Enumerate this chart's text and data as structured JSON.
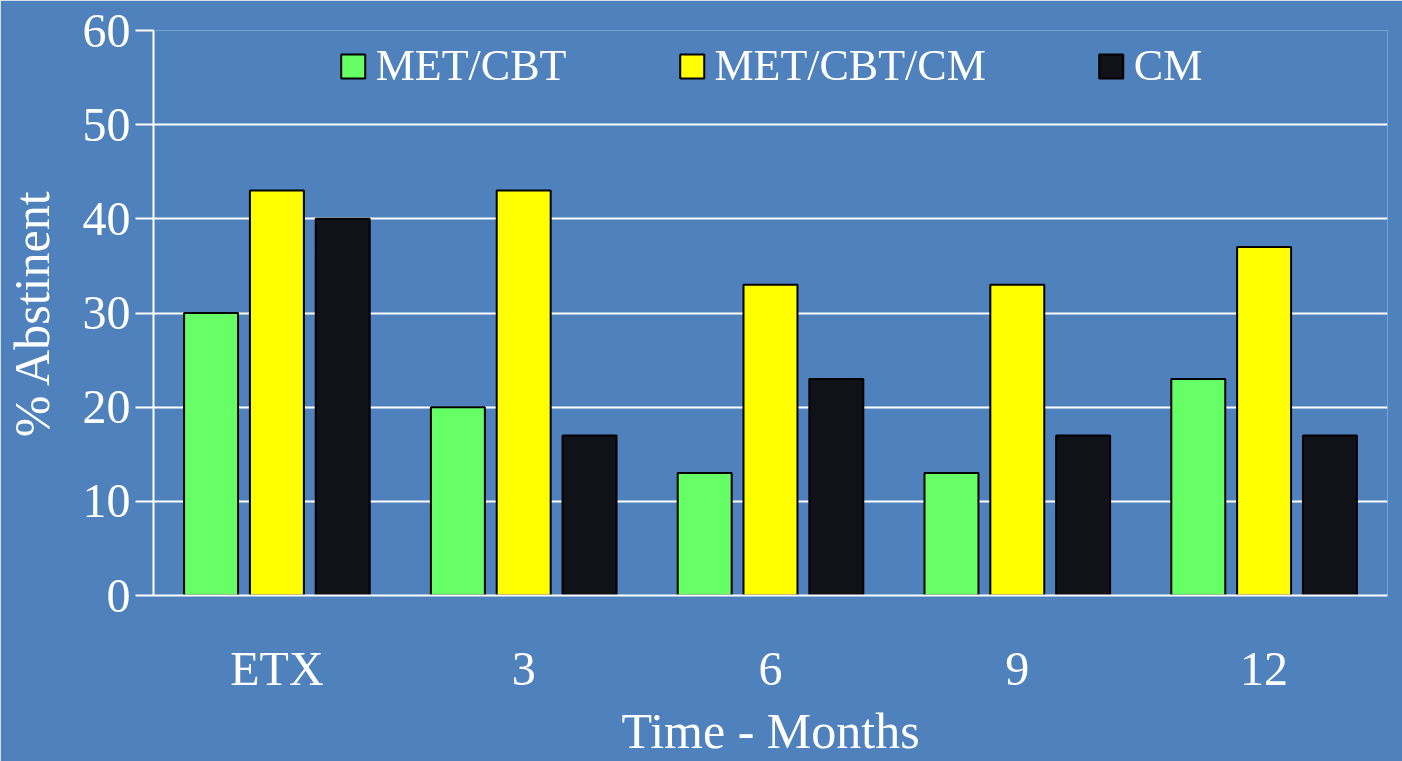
{
  "chart_data": {
    "type": "bar",
    "xlabel": "Time - Months",
    "ylabel": "% Abstinent",
    "categories": [
      "ETX",
      "3",
      "6",
      "9",
      "12"
    ],
    "series": [
      {
        "name": "MET/CBT",
        "color": "#66ff66",
        "values": [
          30,
          20,
          13,
          13,
          23
        ]
      },
      {
        "name": "MET/CBT/CM",
        "color": "#ffff00",
        "values": [
          43,
          43,
          33,
          33,
          37
        ]
      },
      {
        "name": "CM",
        "color": "#111118",
        "values": [
          40,
          17,
          23,
          17,
          17
        ]
      }
    ],
    "ylim": [
      0,
      60
    ],
    "yticks": [
      0,
      10,
      20,
      30,
      40,
      50,
      60
    ],
    "grid": "y",
    "legend": "top"
  }
}
